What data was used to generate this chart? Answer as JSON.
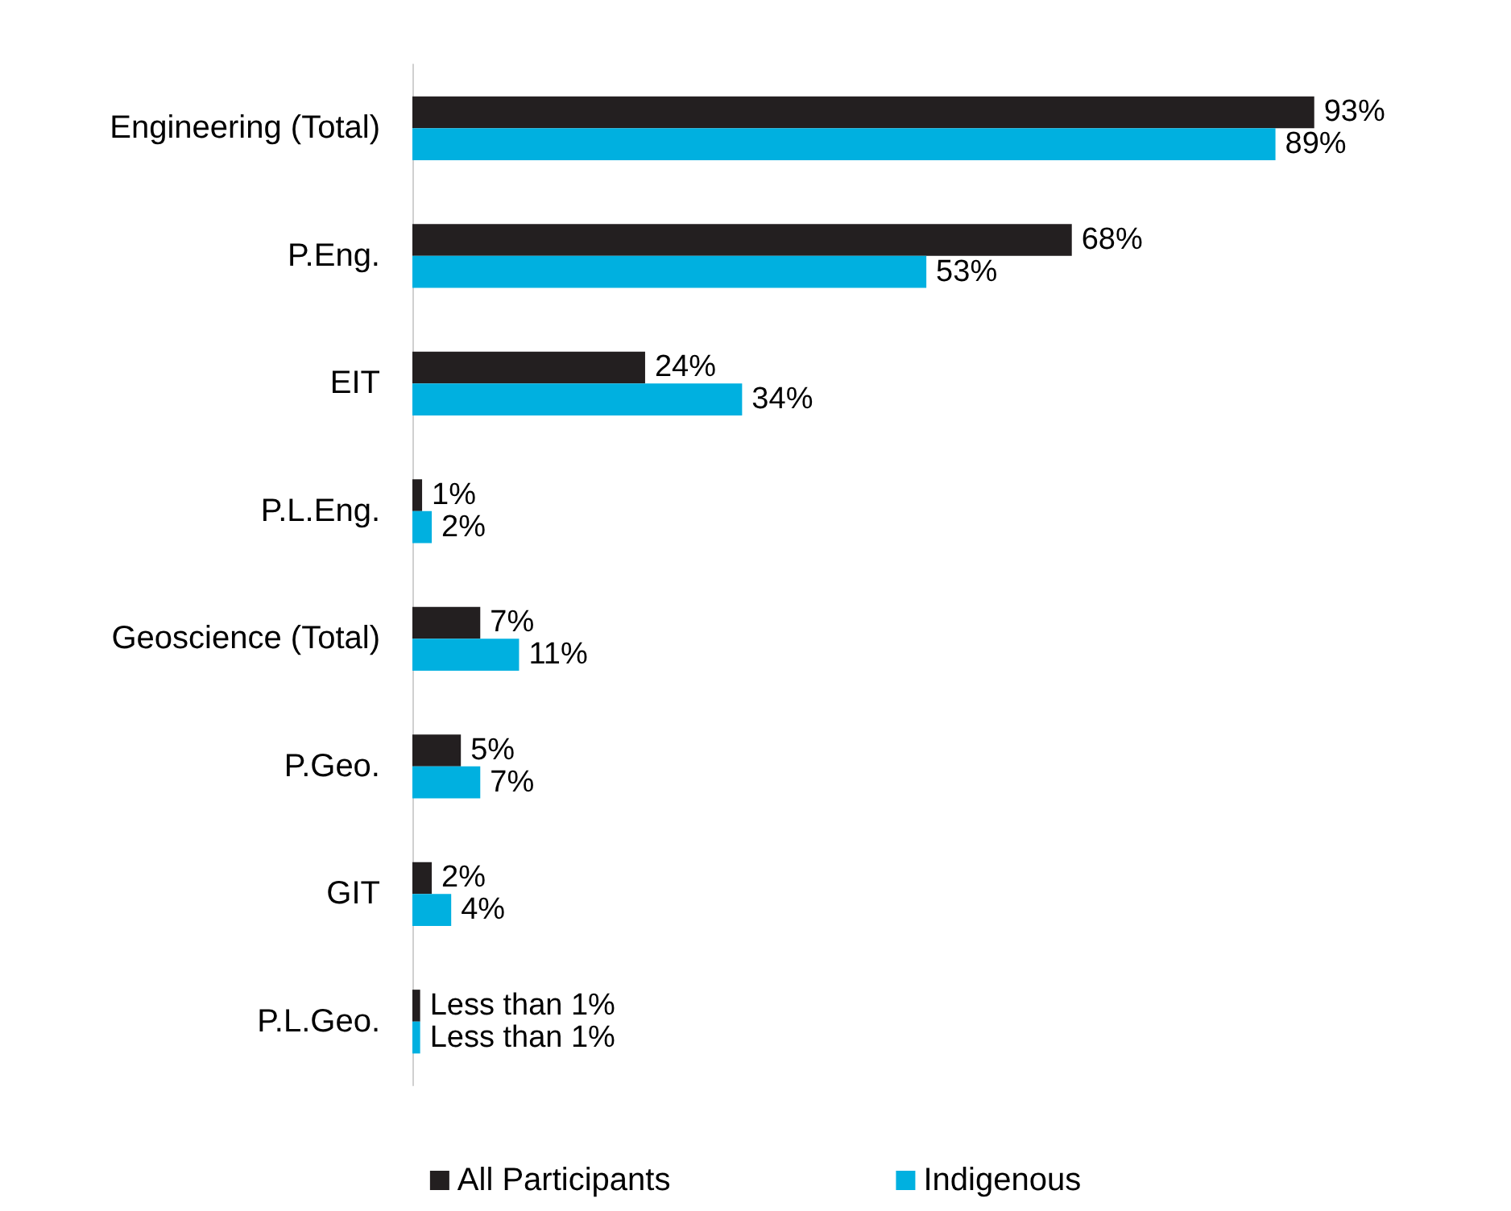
{
  "chart_data": {
    "type": "bar",
    "orientation": "horizontal",
    "categories": [
      "Engineering (Total)",
      "P.Eng.",
      "EIT",
      "P.L.Eng.",
      "Geoscience (Total)",
      "P.Geo.",
      "GIT",
      "P.L.Geo."
    ],
    "series": [
      {
        "name": "All Participants",
        "color": "#231f20",
        "values": [
          93,
          68,
          24,
          1,
          7,
          5,
          2,
          0.8
        ],
        "value_labels": [
          "93%",
          "68%",
          "24%",
          "1%",
          "7%",
          "5%",
          "2%",
          "Less than 1%"
        ]
      },
      {
        "name": "Indigenous",
        "color": "#00b0e0",
        "values": [
          89,
          53,
          34,
          2,
          11,
          7,
          4,
          0.8
        ],
        "value_labels": [
          "89%",
          "53%",
          "34%",
          "2%",
          "11%",
          "7%",
          "4%",
          "Less than 1%"
        ]
      }
    ],
    "legend": "bottom",
    "grid": false
  }
}
